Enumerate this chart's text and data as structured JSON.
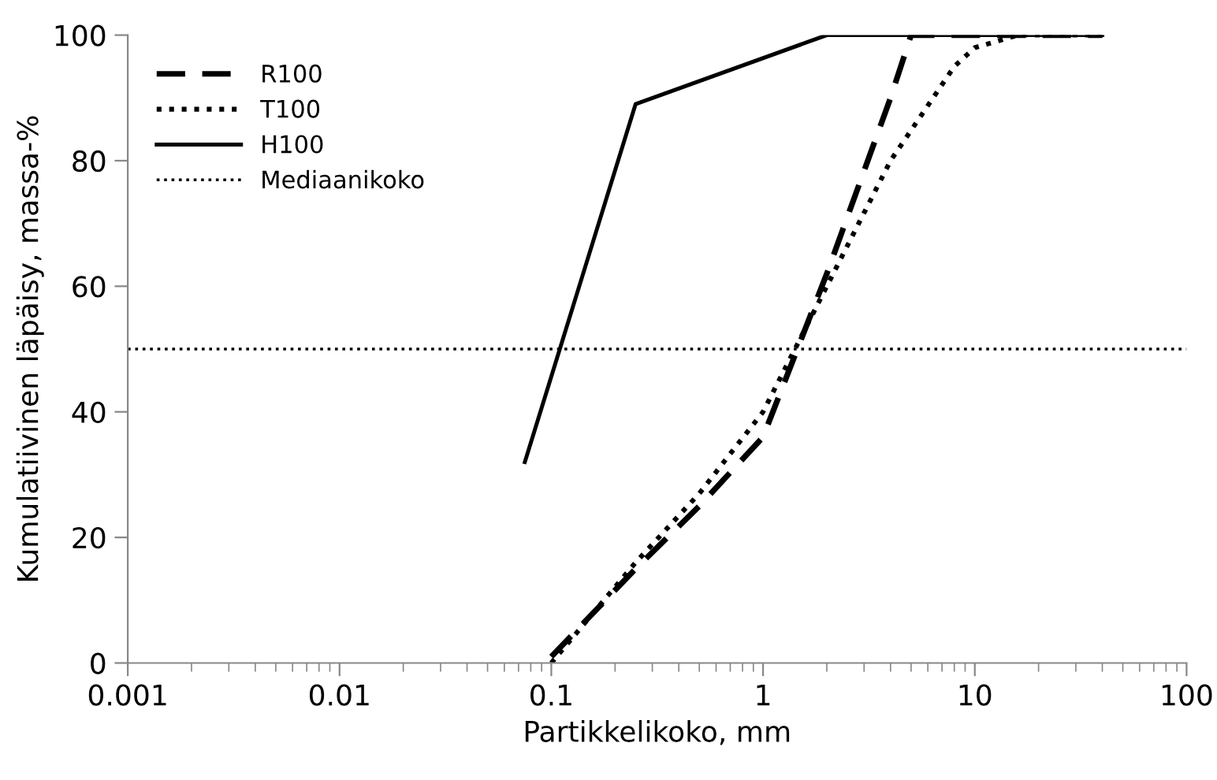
{
  "chart_data": {
    "type": "line",
    "xlabel": "Partikkelikoko, mm",
    "ylabel": "Kumulatiivinen läpäisy, massa-%",
    "log": "x",
    "xlim": [
      0.001,
      100
    ],
    "xticks": [
      0.001,
      0.01,
      0.1,
      1,
      10,
      100
    ],
    "ylim": [
      0,
      100
    ],
    "yticks": [
      0,
      20,
      40,
      60,
      80,
      100
    ],
    "grid": false,
    "legend": "top left",
    "marker": "none",
    "series": [
      {
        "name": "R100",
        "color": "#000000",
        "line_style": "dashed",
        "x": [
          0.1,
          0.25,
          0.5,
          1,
          2,
          4,
          5,
          40
        ],
        "values": [
          1,
          15,
          25,
          36,
          62,
          90,
          100,
          100
        ]
      },
      {
        "name": "T100",
        "color": "#000000",
        "line_style": "dotted",
        "x": [
          0.1,
          0.25,
          0.5,
          1,
          2,
          4,
          8,
          10,
          16,
          40
        ],
        "values": [
          0,
          16,
          27,
          40,
          60,
          80,
          95,
          98,
          100,
          100
        ]
      },
      {
        "name": "H100",
        "color": "#000000",
        "line_style": "solid",
        "x": [
          0.075,
          0.25,
          2,
          40
        ],
        "values": [
          32,
          89,
          100,
          100
        ]
      }
    ],
    "ref_lines": [
      {
        "axis": "y",
        "value": 50,
        "label": "Mediaanikoko",
        "color": "#000000",
        "line_style": "dotted"
      }
    ]
  }
}
